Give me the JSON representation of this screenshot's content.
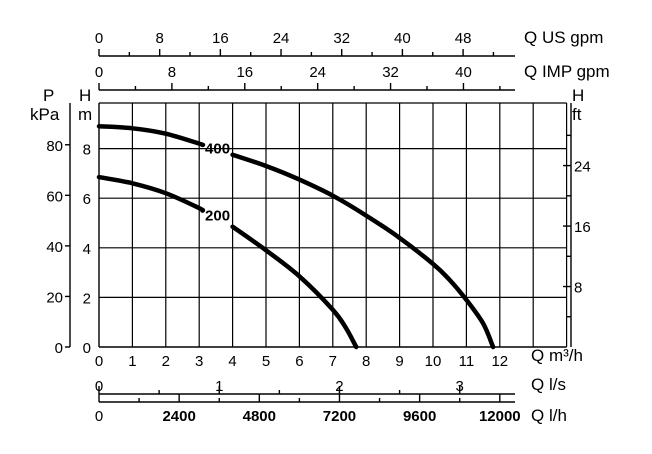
{
  "chart_data": {
    "type": "line",
    "title": "",
    "grid": true,
    "x_axis": {
      "unit_label": "Q m³/h",
      "ticks": [
        0,
        1,
        2,
        3,
        4,
        5,
        6,
        7,
        8,
        9,
        10,
        11,
        12
      ],
      "range": [
        0,
        14
      ]
    },
    "y_axis": {
      "unit_label_top": "H",
      "unit_label_bottom": "m",
      "ticks": [
        0,
        2,
        4,
        6,
        8
      ],
      "range": [
        0,
        9.8
      ]
    },
    "pressure_axis": {
      "label_top": "P",
      "label_bottom": "kPa",
      "ticks": [
        0,
        20,
        40,
        60,
        80
      ]
    },
    "feet_axis": {
      "label_top": "H",
      "label_bottom": "ft",
      "ticks": [
        8,
        16,
        24
      ]
    },
    "us_gpm_axis": {
      "label": "Q US gpm",
      "ticks": [
        0,
        8,
        16,
        24,
        32,
        40,
        48
      ]
    },
    "imp_gpm_axis": {
      "label": "Q IMP gpm",
      "ticks": [
        0,
        8,
        16,
        24,
        32,
        40
      ]
    },
    "lps_axis": {
      "label": "Q l/s",
      "ticks": [
        0,
        1,
        2,
        3
      ]
    },
    "lph_axis": {
      "label": "Q l/h",
      "ticks": [
        0,
        2400,
        4800,
        7200,
        9600,
        12000
      ]
    },
    "series": [
      {
        "name": "400",
        "label_at": [
          3.55,
          8.0
        ],
        "segments": [
          [
            [
              0,
              8.9
            ],
            [
              1,
              8.82
            ],
            [
              2,
              8.6
            ],
            [
              3,
              8.2
            ],
            [
              3.1,
              8.15
            ]
          ],
          [
            [
              4,
              7.75
            ],
            [
              5,
              7.3
            ],
            [
              6,
              6.75
            ],
            [
              7,
              6.1
            ],
            [
              8,
              5.3
            ],
            [
              9,
              4.4
            ],
            [
              10,
              3.35
            ],
            [
              10.5,
              2.7
            ],
            [
              11,
              1.9
            ],
            [
              11.5,
              0.95
            ],
            [
              11.8,
              0
            ]
          ]
        ]
      },
      {
        "name": "200",
        "label_at": [
          3.55,
          5.3
        ],
        "segments": [
          [
            [
              0,
              6.85
            ],
            [
              1,
              6.6
            ],
            [
              2,
              6.2
            ],
            [
              3,
              5.6
            ],
            [
              3.1,
              5.5
            ]
          ],
          [
            [
              4,
              4.85
            ],
            [
              5,
              3.9
            ],
            [
              6,
              2.85
            ],
            [
              7,
              1.5
            ],
            [
              7.4,
              0.75
            ],
            [
              7.7,
              0
            ]
          ]
        ]
      }
    ]
  }
}
